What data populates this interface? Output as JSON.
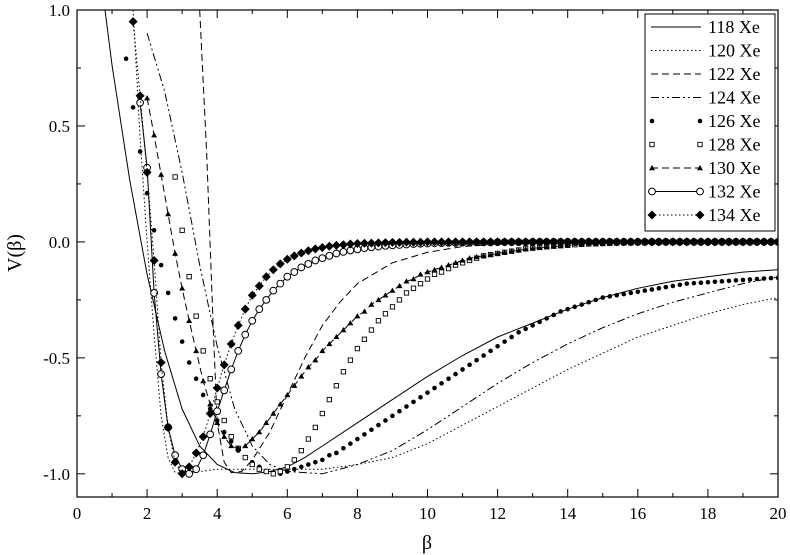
{
  "chart_data": {
    "type": "line",
    "title": "",
    "xlabel": "β",
    "ylabel": "V(β)",
    "xlim": [
      0,
      20
    ],
    "ylim": [
      -1.1,
      1.0
    ],
    "xticks": [
      0,
      2,
      4,
      6,
      8,
      10,
      12,
      14,
      16,
      18,
      20
    ],
    "xtick_labels": [
      "0",
      "2",
      "4",
      "6",
      "8",
      "10",
      "12",
      "14",
      "16",
      "18",
      "20"
    ],
    "yticks": [
      -1.0,
      -0.5,
      0.0,
      0.5,
      1.0
    ],
    "ytick_labels": [
      "-1.0",
      "-0.5",
      "0.0",
      "0.5",
      "1.0"
    ],
    "grid": false,
    "legend_position": "top-right",
    "series": [
      {
        "name": "118 Xe",
        "style": "solid",
        "marker": "none",
        "x": [
          0.8,
          1.0,
          1.5,
          2.0,
          2.5,
          3.0,
          3.5,
          4.0,
          4.5,
          5.0,
          5.5,
          6.0,
          6.5,
          7.0,
          8.0,
          9.0,
          10.0,
          11.0,
          12.0,
          13.0,
          14.0,
          15.0,
          16.0,
          17.0,
          18.0,
          19.0,
          20.0
        ],
        "y": [
          1.0,
          0.76,
          0.27,
          -0.14,
          -0.47,
          -0.72,
          -0.88,
          -0.96,
          -0.995,
          -1.0,
          -0.99,
          -0.97,
          -0.93,
          -0.88,
          -0.78,
          -0.68,
          -0.58,
          -0.49,
          -0.41,
          -0.35,
          -0.29,
          -0.24,
          -0.2,
          -0.17,
          -0.15,
          -0.13,
          -0.12
        ]
      },
      {
        "name": "120 Xe",
        "style": "dotted",
        "marker": "none",
        "x": [
          1.6,
          1.8,
          2.0,
          2.2,
          2.4,
          2.6,
          2.8,
          3.0,
          3.5,
          4.0,
          5.0,
          6.0,
          7.0,
          8.0,
          9.0,
          10.0,
          11.0,
          12.0,
          13.0,
          14.0,
          15.0,
          16.0,
          17.0,
          18.0,
          19.0,
          20.0
        ],
        "y": [
          1.0,
          0.45,
          0.0,
          -0.4,
          -0.75,
          -0.93,
          -0.995,
          -1.0,
          -0.99,
          -0.98,
          -0.98,
          -0.98,
          -0.98,
          -0.96,
          -0.93,
          -0.87,
          -0.79,
          -0.71,
          -0.63,
          -0.55,
          -0.48,
          -0.41,
          -0.36,
          -0.31,
          -0.27,
          -0.24
        ]
      },
      {
        "name": "122 Xe",
        "style": "dashed",
        "marker": "none",
        "x": [
          3.5,
          3.7,
          3.9,
          4.0,
          4.2,
          4.4,
          4.7,
          5.0,
          5.5,
          6.0,
          6.5,
          7.0,
          7.5,
          8.0,
          9.0,
          10.0,
          11.0,
          12.0,
          13.0,
          14.0,
          15.0,
          16.0,
          17.0,
          18.0,
          19.0,
          20.0
        ],
        "y": [
          1.0,
          0.38,
          -0.42,
          -0.78,
          -0.95,
          -0.995,
          -0.99,
          -0.94,
          -0.82,
          -0.66,
          -0.5,
          -0.36,
          -0.26,
          -0.18,
          -0.09,
          -0.045,
          -0.02,
          -0.01,
          -0.005,
          -0.002,
          0.0,
          0.0,
          0.0,
          0.0,
          0.0,
          0.0
        ]
      },
      {
        "name": "124 Xe",
        "style": "dash-dot-dot",
        "marker": "none",
        "x": [
          2.0,
          2.5,
          3.0,
          3.5,
          4.0,
          4.5,
          5.0,
          5.5,
          6.0,
          7.0,
          8.0,
          9.0,
          10.0,
          11.0,
          12.0,
          13.0,
          14.0,
          15.0,
          16.0,
          17.0,
          18.0,
          19.0,
          20.0
        ],
        "y": [
          0.9,
          0.65,
          0.3,
          -0.1,
          -0.45,
          -0.72,
          -0.88,
          -0.96,
          -0.99,
          -1.0,
          -0.96,
          -0.9,
          -0.81,
          -0.71,
          -0.61,
          -0.52,
          -0.44,
          -0.37,
          -0.31,
          -0.26,
          -0.22,
          -0.18,
          -0.15
        ]
      },
      {
        "name": "126 Xe",
        "style": "none",
        "marker": "dot",
        "x": [
          1.4,
          1.6,
          1.8,
          2.0,
          2.2,
          2.4,
          2.6,
          2.8,
          3.0,
          3.2,
          3.4,
          3.6,
          3.8,
          4.0,
          4.2,
          4.4,
          4.6,
          4.8,
          5.0,
          5.2,
          5.4,
          5.6,
          5.8,
          6.0,
          6.2,
          6.4,
          6.6,
          6.8,
          7.0,
          7.2,
          7.4,
          7.6,
          7.8,
          8.0,
          8.2,
          8.4,
          8.6,
          8.8,
          9.0,
          9.2,
          9.4,
          9.6,
          9.8,
          10.0,
          10.2,
          10.4,
          10.6,
          10.8,
          11.0,
          11.2,
          11.4,
          11.6,
          11.8,
          12.0,
          12.2,
          12.4,
          12.6,
          12.8,
          13.0,
          13.2,
          13.4,
          13.6,
          13.8,
          14.0,
          14.2,
          14.4,
          14.6,
          14.8,
          15.0,
          15.2,
          15.4,
          15.6,
          15.8,
          16.0,
          16.2,
          16.4,
          16.6,
          16.8,
          17.0,
          17.2,
          17.4,
          17.6,
          17.8,
          18.0,
          18.2,
          18.4,
          18.6,
          18.8,
          19.0,
          19.2,
          19.4,
          19.6,
          19.8,
          20.0
        ],
        "y": [
          0.79,
          0.58,
          0.39,
          0.21,
          0.05,
          -0.1,
          -0.22,
          -0.33,
          -0.43,
          -0.52,
          -0.59,
          -0.66,
          -0.72,
          -0.77,
          -0.82,
          -0.86,
          -0.9,
          -0.93,
          -0.95,
          -0.97,
          -0.99,
          -1.0,
          -1.0,
          -0.99,
          -0.98,
          -0.97,
          -0.96,
          -0.95,
          -0.94,
          -0.92,
          -0.91,
          -0.89,
          -0.87,
          -0.85,
          -0.83,
          -0.81,
          -0.79,
          -0.77,
          -0.75,
          -0.73,
          -0.71,
          -0.69,
          -0.67,
          -0.65,
          -0.63,
          -0.61,
          -0.59,
          -0.57,
          -0.55,
          -0.53,
          -0.51,
          -0.49,
          -0.47,
          -0.45,
          -0.43,
          -0.41,
          -0.39,
          -0.375,
          -0.36,
          -0.345,
          -0.33,
          -0.315,
          -0.3,
          -0.29,
          -0.28,
          -0.27,
          -0.26,
          -0.25,
          -0.24,
          -0.235,
          -0.23,
          -0.225,
          -0.22,
          -0.215,
          -0.21,
          -0.205,
          -0.2,
          -0.195,
          -0.19,
          -0.185,
          -0.18,
          -0.178,
          -0.176,
          -0.174,
          -0.172,
          -0.17,
          -0.168,
          -0.166,
          -0.164,
          -0.162,
          -0.16,
          -0.158,
          -0.156,
          -0.155
        ]
      },
      {
        "name": "128 Xe",
        "style": "none",
        "marker": "open-square",
        "x": [
          2.8,
          3.0,
          3.2,
          3.4,
          3.6,
          3.8,
          4.0,
          4.2,
          4.4,
          4.6,
          4.8,
          5.0,
          5.2,
          5.4,
          5.6,
          5.8,
          6.0,
          6.2,
          6.4,
          6.6,
          6.8,
          7.0,
          7.2,
          7.4,
          7.6,
          7.8,
          8.0,
          8.2,
          8.4,
          8.6,
          8.8,
          9.0,
          9.2,
          9.4,
          9.6,
          9.8,
          10.0,
          10.2,
          10.4,
          10.6,
          10.8,
          11.0,
          11.2,
          11.4,
          11.6,
          11.8,
          12.0,
          12.2,
          12.4,
          12.6,
          12.8,
          13.0,
          13.2,
          13.4,
          13.6,
          13.8,
          14.0,
          14.2,
          14.4,
          14.6,
          14.8,
          15.0,
          15.2,
          15.4,
          15.6,
          15.8,
          16.0,
          16.2,
          16.4,
          16.6,
          16.8,
          17.0,
          17.2,
          17.4,
          17.6,
          17.8,
          18.0,
          18.2,
          18.4,
          18.6,
          18.8,
          19.0,
          19.2,
          19.4,
          19.6,
          19.8,
          20.0
        ],
        "y": [
          0.28,
          0.05,
          -0.15,
          -0.32,
          -0.47,
          -0.59,
          -0.69,
          -0.77,
          -0.84,
          -0.89,
          -0.93,
          -0.96,
          -0.98,
          -0.99,
          -1.0,
          -0.99,
          -0.97,
          -0.94,
          -0.9,
          -0.85,
          -0.8,
          -0.74,
          -0.68,
          -0.62,
          -0.56,
          -0.51,
          -0.46,
          -0.42,
          -0.38,
          -0.34,
          -0.31,
          -0.28,
          -0.25,
          -0.22,
          -0.2,
          -0.18,
          -0.16,
          -0.14,
          -0.13,
          -0.115,
          -0.1,
          -0.09,
          -0.08,
          -0.07,
          -0.06,
          -0.055,
          -0.05,
          -0.045,
          -0.04,
          -0.035,
          -0.03,
          -0.027,
          -0.024,
          -0.021,
          -0.018,
          -0.016,
          -0.014,
          -0.012,
          -0.01,
          -0.009,
          -0.008,
          -0.007,
          -0.006,
          -0.005,
          -0.004,
          -0.004,
          -0.003,
          -0.003,
          -0.002,
          -0.002,
          -0.002,
          -0.001,
          -0.001,
          -0.001,
          -0.001,
          0.0,
          0.0,
          0.0,
          0.0,
          0.0,
          0.0,
          0.0,
          0.0,
          0.0,
          0.0,
          0.0,
          0.0
        ]
      },
      {
        "name": "130 Xe",
        "style": "dashed",
        "marker": "triangle",
        "x": [
          2.0,
          2.2,
          2.4,
          2.6,
          2.8,
          3.0,
          3.2,
          3.4,
          3.6,
          3.8,
          4.0,
          4.2,
          4.4,
          4.6,
          4.8,
          5.0,
          5.2,
          5.4,
          5.6,
          5.8,
          6.0,
          6.2,
          6.4,
          6.6,
          6.8,
          7.0,
          7.2,
          7.4,
          7.6,
          7.8,
          8.0,
          8.2,
          8.4,
          8.6,
          8.8,
          9.0,
          9.2,
          9.4,
          9.6,
          9.8,
          10.0,
          10.2,
          10.4,
          10.6,
          10.8,
          11.0,
          11.2,
          11.4,
          11.6,
          11.8,
          12.0,
          12.2,
          12.4,
          12.6,
          12.8,
          13.0,
          13.2,
          13.4,
          13.6,
          13.8,
          14.0,
          14.4,
          14.8,
          15.2,
          15.6,
          16.0,
          16.4,
          16.8,
          17.2,
          17.6,
          18.0,
          18.4,
          18.8,
          19.2,
          19.6,
          20.0
        ],
        "y": [
          0.62,
          0.46,
          0.29,
          0.12,
          -0.05,
          -0.2,
          -0.34,
          -0.47,
          -0.6,
          -0.7,
          -0.78,
          -0.84,
          -0.88,
          -0.89,
          -0.88,
          -0.85,
          -0.82,
          -0.78,
          -0.74,
          -0.7,
          -0.66,
          -0.62,
          -0.58,
          -0.54,
          -0.51,
          -0.47,
          -0.44,
          -0.41,
          -0.38,
          -0.35,
          -0.32,
          -0.3,
          -0.27,
          -0.25,
          -0.23,
          -0.21,
          -0.19,
          -0.17,
          -0.16,
          -0.14,
          -0.13,
          -0.12,
          -0.11,
          -0.1,
          -0.09,
          -0.08,
          -0.07,
          -0.065,
          -0.06,
          -0.055,
          -0.05,
          -0.045,
          -0.04,
          -0.036,
          -0.032,
          -0.028,
          -0.025,
          -0.022,
          -0.02,
          -0.018,
          -0.016,
          -0.012,
          -0.009,
          -0.007,
          -0.005,
          -0.004,
          -0.003,
          -0.002,
          -0.001,
          -0.001,
          0.0,
          0.0,
          0.0,
          0.0,
          0.0,
          0.0
        ]
      },
      {
        "name": "132 Xe",
        "style": "solid",
        "marker": "open-circle",
        "x": [
          1.8,
          2.0,
          2.2,
          2.4,
          2.6,
          2.8,
          3.0,
          3.2,
          3.4,
          3.6,
          3.8,
          4.0,
          4.2,
          4.4,
          4.6,
          4.8,
          5.0,
          5.2,
          5.4,
          5.6,
          5.8,
          6.0,
          6.2,
          6.4,
          6.6,
          6.8,
          7.0,
          7.2,
          7.4,
          7.6,
          7.8,
          8.0,
          8.2,
          8.4,
          8.6,
          8.8,
          9.0,
          9.2,
          9.4,
          9.6,
          9.8,
          10.0,
          10.2,
          10.4,
          10.6,
          10.8,
          11.0,
          11.2,
          11.4,
          11.6,
          11.8,
          12.0,
          12.2,
          12.4,
          12.6,
          12.8,
          13.0,
          13.2,
          13.4,
          13.6,
          13.8,
          14.0,
          14.2,
          14.4,
          14.6,
          14.8,
          15.0,
          15.2,
          15.4,
          15.6,
          15.8,
          16.0,
          16.2,
          16.4,
          16.6,
          16.8,
          17.0,
          17.2,
          17.4,
          17.6,
          17.8,
          18.0,
          18.2,
          18.4,
          18.6,
          18.8,
          19.0,
          19.2,
          19.4,
          19.6,
          19.8,
          20.0
        ],
        "y": [
          0.6,
          0.32,
          -0.22,
          -0.57,
          -0.8,
          -0.92,
          -0.98,
          -1.0,
          -0.98,
          -0.92,
          -0.83,
          -0.73,
          -0.64,
          -0.55,
          -0.47,
          -0.4,
          -0.34,
          -0.29,
          -0.25,
          -0.21,
          -0.18,
          -0.15,
          -0.13,
          -0.11,
          -0.095,
          -0.08,
          -0.07,
          -0.06,
          -0.05,
          -0.043,
          -0.037,
          -0.032,
          -0.027,
          -0.023,
          -0.02,
          -0.017,
          -0.015,
          -0.013,
          -0.011,
          -0.009,
          -0.008,
          -0.007,
          -0.006,
          -0.005,
          -0.004,
          -0.004,
          -0.003,
          -0.003,
          -0.002,
          -0.002,
          -0.002,
          -0.001,
          -0.001,
          -0.001,
          -0.001,
          -0.001,
          0.0,
          0.0,
          0.0,
          0.0,
          0.0,
          0.0,
          0.0,
          0.0,
          0.0,
          0.0,
          0.0,
          0.0,
          0.0,
          0.0,
          0.0,
          0.0,
          0.0,
          0.0,
          0.0,
          0.0,
          0.0,
          0.0,
          0.0,
          0.0,
          0.0,
          0.0,
          0.0,
          0.0,
          0.0,
          0.0,
          0.0,
          0.0,
          0.0,
          0.0,
          0.0,
          0.0
        ]
      },
      {
        "name": "134 Xe",
        "style": "dotted",
        "marker": "filled-diamond",
        "x": [
          1.6,
          1.8,
          2.0,
          2.2,
          2.4,
          2.6,
          2.8,
          3.0,
          3.2,
          3.4,
          3.6,
          3.8,
          4.0,
          4.2,
          4.4,
          4.6,
          4.8,
          5.0,
          5.2,
          5.4,
          5.6,
          5.8,
          6.0,
          6.2,
          6.4,
          6.6,
          6.8,
          7.0,
          7.2,
          7.4,
          7.6,
          7.8,
          8.0,
          8.2,
          8.4,
          8.6,
          8.8,
          9.0,
          9.2,
          9.4,
          9.6,
          9.8,
          10.0,
          10.2,
          10.4,
          10.6,
          10.8,
          11.0,
          11.2,
          11.4,
          11.6,
          11.8,
          12.0,
          12.2,
          12.4,
          12.6,
          12.8,
          13.0,
          13.2,
          13.4,
          13.6,
          13.8,
          14.0,
          14.2,
          14.4,
          14.6,
          14.8,
          15.0,
          15.2,
          15.4,
          15.6,
          15.8,
          16.0,
          16.2,
          16.4,
          16.6,
          16.8,
          17.0,
          17.2,
          17.4,
          17.6,
          17.8,
          18.0,
          18.2,
          18.4,
          18.6,
          18.8,
          19.0,
          19.2,
          19.4,
          19.6,
          19.8,
          20.0
        ],
        "y": [
          0.95,
          0.63,
          0.3,
          -0.08,
          -0.52,
          -0.8,
          -0.95,
          -1.0,
          -0.97,
          -0.91,
          -0.84,
          -0.74,
          -0.63,
          -0.53,
          -0.44,
          -0.36,
          -0.29,
          -0.23,
          -0.19,
          -0.15,
          -0.12,
          -0.095,
          -0.075,
          -0.06,
          -0.048,
          -0.038,
          -0.03,
          -0.024,
          -0.019,
          -0.015,
          -0.012,
          -0.009,
          -0.007,
          -0.006,
          -0.005,
          -0.004,
          -0.003,
          -0.002,
          -0.002,
          -0.001,
          -0.001,
          -0.001,
          0.0,
          0.0,
          0.0,
          0.0,
          0.0,
          0.0,
          0.0,
          0.0,
          0.0,
          0.0,
          0.0,
          0.0,
          0.0,
          0.0,
          0.0,
          0.0,
          0.0,
          0.0,
          0.0,
          0.0,
          0.0,
          0.0,
          0.0,
          0.0,
          0.0,
          0.0,
          0.0,
          0.0,
          0.0,
          0.0,
          0.0,
          0.0,
          0.0,
          0.0,
          0.0,
          0.0,
          0.0,
          0.0,
          0.0,
          0.0,
          0.0,
          0.0,
          0.0,
          0.0,
          0.0,
          0.0,
          0.0,
          0.0,
          0.0,
          0.0,
          0.0
        ]
      }
    ]
  }
}
